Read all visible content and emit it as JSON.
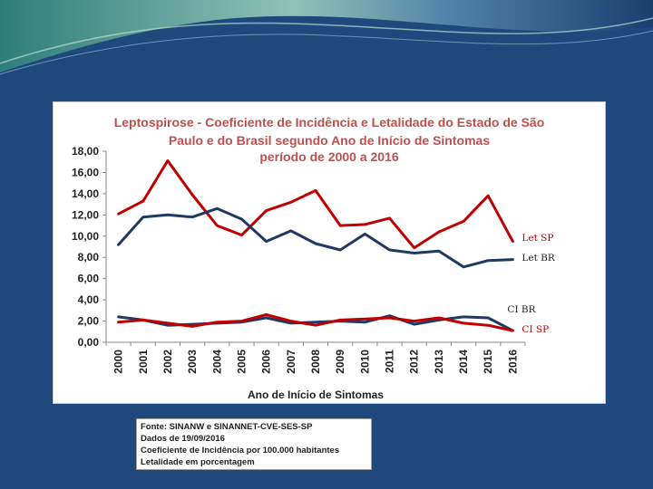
{
  "colors": {
    "background": "#1f497d",
    "panel": "#ffffff",
    "title": "#c0504d",
    "brazil_series": "#1f3864",
    "sao_paulo_series": "#c00000"
  },
  "chart_data": {
    "type": "line",
    "title": [
      "Leptospirose - Coeficiente de Incidência e Letalidade do Estado de São",
      "Paulo e do Brasil segundo Ano de Início de Sintomas",
      "período de 2000 a 2016"
    ],
    "xlabel": "Ano de Início de Sintomas",
    "ylabel": "",
    "ylim": [
      0,
      18
    ],
    "yticks": [
      "0,00",
      "2,00",
      "4,00",
      "6,00",
      "8,00",
      "10,00",
      "12,00",
      "14,00",
      "16,00",
      "18,00"
    ],
    "categories": [
      "2000",
      "2001",
      "2002",
      "2003",
      "2004",
      "2005",
      "2006",
      "2007",
      "2008",
      "2009",
      "2010",
      "2011",
      "2012",
      "2013",
      "2014",
      "2015",
      "2016"
    ],
    "grid": false,
    "legend": "none",
    "series": [
      {
        "name": "Let SP",
        "color": "#c00000",
        "values": [
          12.1,
          13.3,
          17.1,
          13.9,
          11.0,
          10.1,
          12.4,
          13.2,
          14.3,
          11.0,
          11.1,
          11.7,
          8.9,
          10.4,
          11.4,
          13.8,
          9.5
        ]
      },
      {
        "name": "Let BR",
        "color": "#1f3864",
        "values": [
          9.2,
          11.8,
          12.0,
          11.8,
          12.6,
          11.6,
          9.5,
          10.5,
          9.3,
          8.7,
          10.2,
          8.7,
          8.4,
          8.6,
          7.1,
          7.7,
          7.8
        ]
      },
      {
        "name": "CI BR",
        "color": "#1f3864",
        "values": [
          2.4,
          2.1,
          1.6,
          1.7,
          1.8,
          1.9,
          2.3,
          1.8,
          1.9,
          2.0,
          1.9,
          2.5,
          1.7,
          2.1,
          2.4,
          2.3,
          1.1
        ]
      },
      {
        "name": "CI SP",
        "color": "#c00000",
        "values": [
          1.9,
          2.1,
          1.8,
          1.5,
          1.9,
          2.0,
          2.6,
          2.0,
          1.6,
          2.1,
          2.2,
          2.3,
          2.0,
          2.3,
          1.8,
          1.6,
          1.1
        ]
      }
    ]
  },
  "notes": [
    "Fonte: SINANW e SINANNET-CVE-SES-SP",
    "Dados de 19/09/2016",
    "Coeficiente de Incidência por 100.000 habitantes",
    "Letalidade em porcentagem"
  ]
}
